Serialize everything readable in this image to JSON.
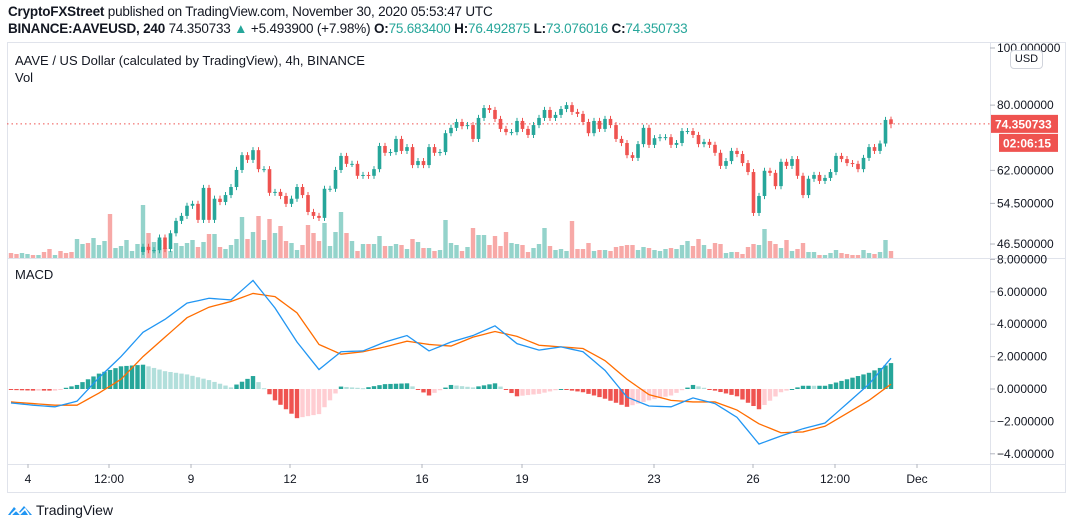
{
  "header": {
    "publisher": "CryptoFXStreet",
    "published_text": " published on TradingView.com, November 30, 2020 05:53:47 UTC",
    "symbol": "BINANCE:AAVEUSD, 240",
    "last": "74.350733",
    "change_icon": "triangle-up-icon",
    "change_arrow": "▲",
    "change": "+5.493900 (+7.98%)",
    "o_label": "O:",
    "o": "75.683400",
    "h_label": "H:",
    "h": "76.492875",
    "l_label": "L:",
    "l": "73.076016",
    "c_label": "C:",
    "c": "74.350733"
  },
  "colors": {
    "up": "#26a69a",
    "down": "#ef5350",
    "up_light": "#b2dfdb",
    "down_light": "#ffcdd2",
    "vol_up": "#94d3cb",
    "vol_down": "#f7a9a7",
    "macd": "#2196f3",
    "signal": "#ff6d00"
  },
  "currency_button": "USD",
  "footer": {
    "logo_text": "TradingView"
  },
  "chart_data": [
    {
      "type": "candlestick",
      "title": "AAVE / US Dollar (calculated by TradingView), 4h, BINANCE",
      "y_scale": "log",
      "ylim": [
        46.0,
        100.0
      ],
      "y_ticks": [
        {
          "value": 100,
          "label": "100.000000"
        },
        {
          "value": 80,
          "label": "80.000000"
        },
        {
          "value": 62,
          "label": "62.000000"
        },
        {
          "value": 54.5,
          "label": "54.500000"
        },
        {
          "value": 46.5,
          "label": "46.500000"
        }
      ],
      "last_price": {
        "value": 74.350733,
        "label": "74.350733",
        "countdown": "02:06:15"
      },
      "x_ticks": [
        "4",
        "12:00",
        "9",
        "12",
        "16",
        "19",
        "23",
        "26",
        "12:00",
        "Dec"
      ],
      "last_candle": {
        "open": 75.6834,
        "high": 76.492875,
        "low": 73.076016,
        "close": 74.350733
      },
      "close": [
        46.0,
        45.4,
        45.4,
        47.7,
        45.6,
        48.5,
        50.9,
        51.9,
        54.0,
        54.4,
        51.1,
        57.9,
        51.1,
        55.5,
        54.8,
        56.3,
        58.1,
        62.1,
        65.8,
        64.6,
        67.1,
        62.3,
        62.3,
        56.8,
        57.0,
        56.1,
        54.4,
        55.5,
        58.1,
        56.3,
        52.7,
        51.9,
        51.5,
        57.7,
        57.7,
        62.1,
        65.6,
        63.6,
        63.6,
        60.7,
        60.9,
        60.7,
        62.3,
        68.2,
        66.4,
        66.6,
        70.1,
        66.9,
        67.9,
        63.3,
        64.3,
        63.3,
        67.9,
        66.4,
        66.6,
        71.7,
        73.2,
        74.9,
        73.7,
        74.0,
        70.1,
        76.1,
        79.1,
        78.5,
        75.8,
        72.9,
        72.0,
        72.0,
        75.2,
        72.9,
        71.2,
        74.0,
        76.1,
        78.5,
        76.1,
        77.0,
        78.8,
        80.0,
        77.9,
        77.3,
        74.9,
        71.7,
        75.2,
        72.9,
        75.8,
        74.0,
        70.1,
        69.0,
        65.8,
        65.1,
        68.7,
        73.2,
        68.5,
        70.3,
        70.6,
        70.6,
        68.5,
        69.0,
        72.3,
        72.3,
        71.2,
        68.7,
        69.3,
        68.5,
        66.4,
        63.1,
        64.3,
        66.9,
        66.1,
        63.8,
        61.6,
        52.5,
        56.1,
        61.9,
        61.4,
        58.3,
        64.1,
        63.1,
        64.8,
        60.7,
        56.3,
        60.0,
        60.9,
        59.5,
        60.2,
        61.6,
        65.6,
        64.8,
        63.8,
        63.6,
        62.3,
        65.1,
        67.9,
        66.9,
        68.86,
        75.5,
        74.35
      ],
      "volume": {
        "label": "Vol",
        "values_relative": [
          5,
          4,
          5,
          4,
          3,
          3,
          6,
          9,
          3,
          7,
          5,
          6,
          19,
          14,
          15,
          20,
          13,
          17,
          44,
          10,
          12,
          18,
          7,
          14,
          53,
          25,
          16,
          18,
          10,
          7,
          15,
          12,
          15,
          18,
          11,
          16,
          24,
          24,
          11,
          9,
          13,
          19,
          41,
          19,
          26,
          42,
          18,
          39,
          25,
          32,
          17,
          15,
          8,
          13,
          33,
          25,
          17,
          35,
          12,
          26,
          46,
          25,
          17,
          7,
          14,
          14,
          14,
          22,
          12,
          12,
          14,
          13,
          9,
          19,
          16,
          10,
          10,
          7,
          8,
          38,
          15,
          13,
          7,
          11,
          30,
          23,
          23,
          13,
          22,
          12,
          26,
          15,
          14,
          13,
          6,
          10,
          14,
          30,
          12,
          8,
          9,
          7,
          37,
          9,
          9,
          15,
          7,
          8,
          8,
          7,
          11,
          12,
          13,
          13,
          8,
          11,
          10,
          8,
          7,
          9,
          10,
          9,
          13,
          17,
          12,
          19,
          13,
          9,
          15,
          14,
          5,
          6,
          6,
          4,
          11,
          14,
          13,
          29,
          17,
          14,
          10,
          18,
          7,
          9,
          15,
          6,
          6,
          3,
          3,
          5,
          8,
          5,
          4,
          3,
          3,
          8,
          5,
          4,
          6,
          18,
          7
        ],
        "direction_before_candles": "dduududduddduuduuuduuuuu"
      }
    },
    {
      "type": "line",
      "title": "MACD",
      "ylim": [
        -4.5,
        8.0
      ],
      "y_ticks": [
        {
          "value": 8,
          "label": "8.000000"
        },
        {
          "value": 6,
          "label": "6.000000"
        },
        {
          "value": 4,
          "label": "4.000000"
        },
        {
          "value": 2,
          "label": "2.000000"
        },
        {
          "value": 0,
          "label": "0.000000"
        },
        {
          "value": -2,
          "label": "−2.000000"
        },
        {
          "value": -4,
          "label": "−4.000000"
        }
      ],
      "series": [
        {
          "values": [
            -0.86,
            -1.0,
            -1.1,
            -0.75,
            0.7,
            2.0,
            3.5,
            4.3,
            5.3,
            5.6,
            5.5,
            6.7,
            5.0,
            2.9,
            1.2,
            2.3,
            2.35,
            2.9,
            3.3,
            2.35,
            2.9,
            3.3,
            3.9,
            2.8,
            2.4,
            2.6,
            2.3,
            1.15,
            -0.5,
            -1.05,
            -1.1,
            -0.55,
            -0.9,
            -1.75,
            -3.4,
            -2.9,
            -2.45,
            -2.1,
            -0.9,
            0.3,
            1.9
          ]
        },
        {
          "values": [
            -0.8,
            -0.9,
            -1.0,
            -1.0,
            -0.25,
            0.6,
            2.0,
            3.2,
            4.4,
            5.05,
            5.4,
            5.9,
            5.7,
            4.7,
            2.75,
            2.15,
            2.3,
            2.6,
            2.95,
            2.75,
            2.65,
            3.2,
            3.55,
            3.25,
            2.7,
            2.6,
            2.5,
            1.75,
            0.6,
            -0.35,
            -0.7,
            -0.8,
            -0.8,
            -1.3,
            -2.15,
            -2.7,
            -2.65,
            -2.3,
            -1.5,
            -0.7,
            0.3
          ]
        }
      ],
      "histogram": "macd minus signal"
    }
  ]
}
